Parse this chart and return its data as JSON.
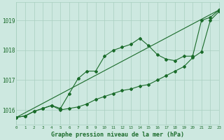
{
  "title": "Graphe pression niveau de la mer (hPa)",
  "background_color": "#cde8e0",
  "grid_color": "#a8cfc0",
  "line_color": "#1a6b2a",
  "xlim": [
    0,
    23
  ],
  "ylim": [
    1015.5,
    1019.6
  ],
  "yticks": [
    1016,
    1017,
    1018,
    1019
  ],
  "xticks": [
    0,
    1,
    2,
    3,
    4,
    5,
    6,
    7,
    8,
    9,
    10,
    11,
    12,
    13,
    14,
    15,
    16,
    17,
    18,
    19,
    20,
    21,
    22,
    23
  ],
  "series1_x": [
    0,
    1,
    2,
    3,
    4,
    5,
    6,
    7,
    8,
    9,
    10,
    11,
    12,
    13,
    14,
    15,
    16,
    17,
    18,
    19,
    20,
    21,
    22,
    23
  ],
  "series1_y": [
    1015.75,
    1015.8,
    1015.95,
    1016.05,
    1016.15,
    1016.05,
    1016.55,
    1017.05,
    1017.3,
    1017.3,
    1017.8,
    1018.0,
    1018.1,
    1018.2,
    1018.4,
    1018.15,
    1017.85,
    1017.7,
    1017.65,
    1017.8,
    1017.8,
    1019.0,
    1019.1,
    1019.35
  ],
  "series2_x": [
    0,
    1,
    2,
    3,
    4,
    5,
    6,
    7,
    8,
    9,
    10,
    11,
    12,
    13,
    14,
    15,
    16,
    17,
    18,
    19,
    20,
    21,
    22,
    23
  ],
  "series2_y": [
    1015.75,
    1015.8,
    1015.95,
    1016.05,
    1016.15,
    1016.0,
    1016.05,
    1016.1,
    1016.2,
    1016.35,
    1016.45,
    1016.55,
    1016.65,
    1016.7,
    1016.8,
    1016.85,
    1017.0,
    1017.15,
    1017.3,
    1017.45,
    1017.75,
    1017.95,
    1019.0,
    1019.3
  ],
  "series3_x": [
    0,
    23
  ],
  "series3_y": [
    1015.75,
    1019.35
  ]
}
